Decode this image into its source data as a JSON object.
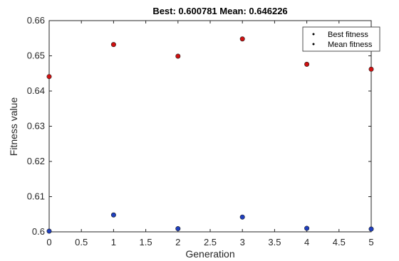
{
  "chart_data": {
    "type": "scatter",
    "title": "Best: 0.600781 Mean: 0.646226",
    "xlabel": "Generation",
    "ylabel": "Fitness value",
    "xlim": [
      0,
      5
    ],
    "ylim": [
      0.6,
      0.66
    ],
    "x_ticks": [
      "0",
      "0.5",
      "1",
      "1.5",
      "2",
      "2.5",
      "3",
      "3.5",
      "4",
      "4.5",
      "5"
    ],
    "x_tick_values": [
      0,
      0.5,
      1,
      1.5,
      2,
      2.5,
      3,
      3.5,
      4,
      4.5,
      5
    ],
    "y_ticks": [
      "0.6",
      "0.61",
      "0.62",
      "0.63",
      "0.64",
      "0.65",
      "0.66"
    ],
    "y_tick_values": [
      0.6,
      0.61,
      0.62,
      0.63,
      0.64,
      0.65,
      0.66
    ],
    "grid": false,
    "legend_position": "top-right",
    "series": [
      {
        "name": "Best fitness",
        "color": "#1f3fbf",
        "x": [
          0,
          1,
          2,
          3,
          4,
          5
        ],
        "values": [
          0.6002,
          0.6048,
          0.6009,
          0.6042,
          0.601,
          0.6008
        ]
      },
      {
        "name": "Mean fitness",
        "color": "#d01010",
        "x": [
          0,
          1,
          2,
          3,
          4,
          5
        ],
        "values": [
          0.6441,
          0.6532,
          0.6499,
          0.6548,
          0.6476,
          0.6462
        ]
      }
    ]
  }
}
